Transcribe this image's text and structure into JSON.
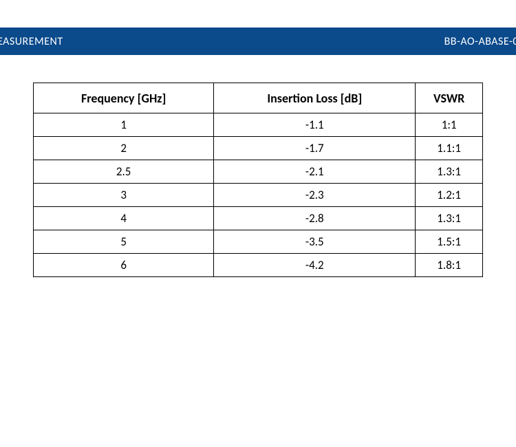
{
  "header": {
    "left_text": "EASUREMENT",
    "right_text": "BB-AO-ABASE-0",
    "bg_color": "#0b4a8b",
    "text_color": "#ffffff"
  },
  "table": {
    "border_color": "#000000",
    "header_fontsize": 18,
    "cell_fontsize": 17,
    "columns": [
      "Frequency [GHz]",
      "Insertion Loss [dB]",
      "VSWR"
    ],
    "rows": [
      [
        "1",
        "-1.1",
        "1:1"
      ],
      [
        "2",
        "-1.7",
        "1.1:1"
      ],
      [
        "2.5",
        "-2.1",
        "1.3:1"
      ],
      [
        "3",
        "-2.3",
        "1.2:1"
      ],
      [
        "4",
        "-2.8",
        "1.3:1"
      ],
      [
        "5",
        "-3.5",
        "1.5:1"
      ],
      [
        "6",
        "-4.2",
        "1.8:1"
      ]
    ]
  }
}
